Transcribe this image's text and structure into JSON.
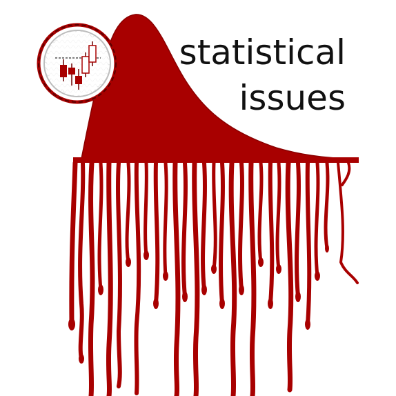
{
  "title": {
    "line1": "statistical",
    "line2": "issues"
  },
  "colors": {
    "primary": "#a80000",
    "text": "#111111",
    "background": "#ffffff"
  },
  "icons": {
    "emblem": "candlestick-chart-icon",
    "art": "dripping-distribution-curve"
  }
}
